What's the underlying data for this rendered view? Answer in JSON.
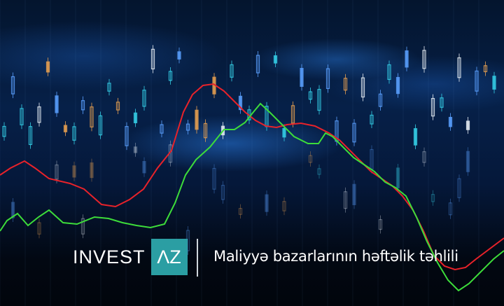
{
  "brand": {
    "name": "INVEST",
    "mark": "ΛZ",
    "mark_color": "#2b9ea3"
  },
  "tagline": "Maliyyə bazarlarının həftəlik təhlili",
  "colors": {
    "red_line": "#e8222a",
    "green_line": "#3ddc3a",
    "candle_cyan": "#35d0e8",
    "candle_orange": "#e8a050"
  }
}
